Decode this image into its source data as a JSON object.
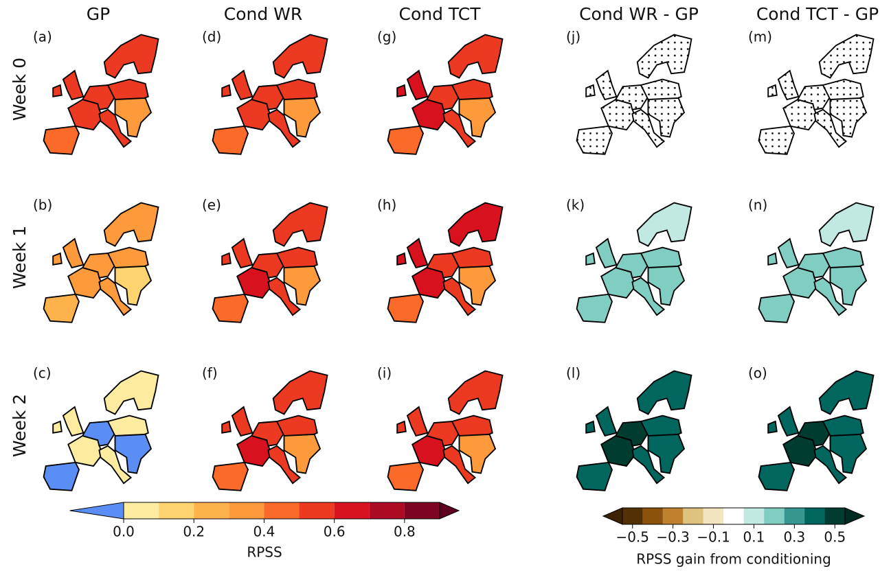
{
  "columns": [
    "GP",
    "Cond WR",
    "Cond TCT",
    "Cond WR - GP",
    "Cond TCT - GP"
  ],
  "rows": [
    "Week 0",
    "Week 1",
    "Week 2"
  ],
  "colorbars": [
    {
      "label": "RPSS",
      "levels": [
        0,
        0.1,
        0.2,
        0.3,
        0.4,
        0.5,
        0.6,
        0.7,
        0.8,
        0.9
      ],
      "colors": [
        "#fdeba0",
        "#fed470",
        "#feb24c",
        "#fd9a3c",
        "#fc6a2a",
        "#ec3a22",
        "#d7111e",
        "#ad0a24",
        "#7e0424"
      ],
      "under_color": "#5b8ef5",
      "over_color": "#5e0020",
      "ticks": [
        {
          "value": 0,
          "label": "0.0"
        },
        0.2,
        0.4,
        0.6,
        0.8
      ],
      "panels": [
        {
          "label": "(a)",
          "values": [
            0.55,
            0.55,
            0.55,
            0.45,
            0.55,
            0.55,
            0.55,
            0.35
          ]
        },
        {
          "label": "(b)",
          "values": [
            0.35,
            0.35,
            0.35,
            0.25,
            0.35,
            0.3,
            0.3,
            0.15
          ]
        },
        {
          "label": "(c)",
          "values": [
            0.05,
            0.05,
            0.05,
            -0.05,
            -0.05,
            0.05,
            0.05,
            -0.05
          ]
        },
        {
          "label": "(d)",
          "values": [
            0.55,
            0.55,
            0.55,
            0.45,
            0.55,
            0.55,
            0.55,
            0.35
          ]
        },
        {
          "label": "(e)",
          "values": [
            0.55,
            0.55,
            0.65,
            0.45,
            0.55,
            0.55,
            0.55,
            0.35
          ]
        },
        {
          "label": "(f)",
          "values": [
            0.55,
            0.55,
            0.65,
            0.45,
            0.55,
            0.55,
            0.55,
            0.35
          ]
        },
        {
          "label": "(g)",
          "values": [
            0.55,
            0.65,
            0.65,
            0.45,
            0.55,
            0.55,
            0.55,
            0.35
          ]
        },
        {
          "label": "(h)",
          "values": [
            0.65,
            0.65,
            0.65,
            0.45,
            0.55,
            0.55,
            0.55,
            0.35
          ]
        },
        {
          "label": "(i)",
          "values": [
            0.55,
            0.55,
            0.65,
            0.45,
            0.55,
            0.55,
            0.55,
            0.35
          ]
        }
      ]
    },
    {
      "label": "RPSS gain from conditioning",
      "levels": [
        -0.55,
        -0.45,
        -0.35,
        -0.25,
        -0.15,
        -0.05,
        0.05,
        0.15,
        0.25,
        0.35,
        0.45,
        0.55
      ],
      "colors": [
        "#543005",
        "#8c510a",
        "#bf812d",
        "#dfc27d",
        "#f3e5c0",
        "#ffffff",
        "#c2e8e2",
        "#80cdc1",
        "#35978f",
        "#01665e",
        "#003c30"
      ],
      "under_color": "#3d2104",
      "over_color": "#002a22",
      "ticks": [
        {
          "value": -0.5,
          "label": "−0.5"
        },
        {
          "value": -0.3,
          "label": "−0.3"
        },
        {
          "value": -0.1,
          "label": "−0.1"
        },
        0.1,
        0.3,
        0.5
      ],
      "panels": [
        {
          "label": "(j)",
          "values": [
            0,
            0,
            0,
            0,
            0,
            0,
            0,
            0
          ],
          "stippled": true
        },
        {
          "label": "(k)",
          "values": [
            0.1,
            0.2,
            0.2,
            0.2,
            0.2,
            0.2,
            0.2,
            0.2
          ]
        },
        {
          "label": "(l)",
          "values": [
            0.4,
            0.4,
            0.5,
            0.4,
            0.5,
            0.4,
            0.4,
            0.4
          ]
        },
        {
          "label": "(m)",
          "values": [
            0,
            0,
            0,
            0,
            0,
            0,
            0,
            0
          ],
          "stippled": true
        },
        {
          "label": "(n)",
          "values": [
            0.1,
            0.2,
            0.2,
            0.2,
            0.2,
            0.2,
            0.2,
            0.2
          ]
        },
        {
          "label": "(o)",
          "values": [
            0.4,
            0.4,
            0.5,
            0.4,
            0.5,
            0.4,
            0.4,
            0.4
          ]
        }
      ]
    }
  ]
}
